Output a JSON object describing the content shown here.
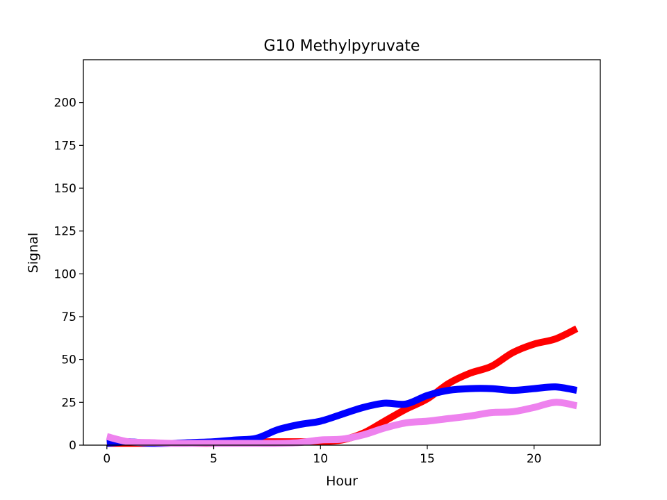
{
  "chart_data": {
    "type": "line",
    "title": "G10 Methylpyruvate",
    "xlabel": "Hour",
    "ylabel": "Signal",
    "xlim": [
      -1.1,
      23.1
    ],
    "ylim": [
      0,
      225
    ],
    "xticks": [
      "0",
      "5",
      "10",
      "15",
      "20"
    ],
    "yticks": [
      "0",
      "25",
      "50",
      "75",
      "100",
      "125",
      "150",
      "175",
      "200"
    ],
    "grid": false,
    "legend": "none",
    "x": [
      0,
      1,
      2,
      3,
      4,
      5,
      6,
      7,
      8,
      9,
      10,
      11,
      12,
      13,
      14,
      15,
      16,
      17,
      18,
      19,
      20,
      21,
      22
    ],
    "series": [
      {
        "color": "#ff0000",
        "values": [
          1,
          1,
          1,
          1,
          1,
          1,
          2,
          2,
          2,
          2,
          2,
          3,
          7,
          14,
          21,
          27,
          36,
          42,
          46,
          54,
          59,
          62,
          68
        ]
      },
      {
        "color": "#0000ff",
        "values": [
          1,
          2,
          1,
          1,
          1.5,
          2,
          3,
          4,
          9,
          12,
          14,
          18,
          22,
          24.5,
          24,
          29,
          32,
          33,
          33,
          32,
          33,
          34,
          32
        ]
      },
      {
        "color": "#ee82ee",
        "values": [
          5,
          2,
          1.5,
          1,
          1,
          1,
          1,
          1,
          1,
          1.5,
          3,
          3.5,
          6,
          10,
          13,
          14,
          15.5,
          17,
          19,
          19.5,
          22,
          25,
          23
        ]
      }
    ]
  }
}
